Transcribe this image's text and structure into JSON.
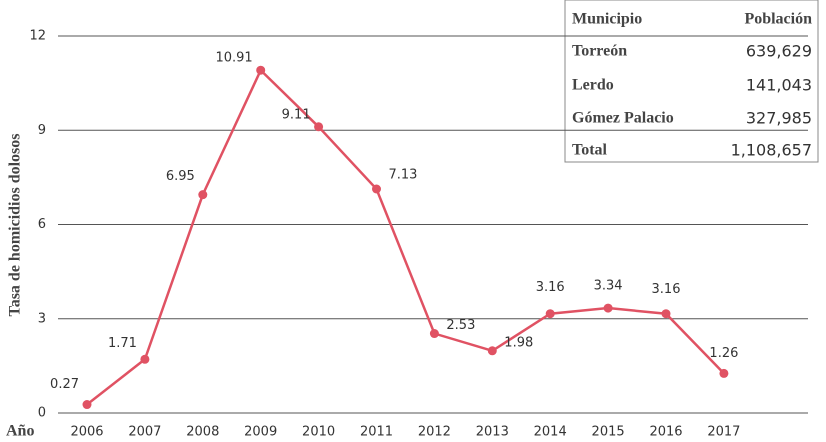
{
  "chart_data": {
    "type": "line",
    "x_label": "Año",
    "y_label": "Tasa de homicidios dolosos",
    "categories": [
      "2006",
      "2007",
      "2008",
      "2009",
      "2010",
      "2011",
      "2012",
      "2013",
      "2014",
      "2015",
      "2016",
      "2017"
    ],
    "values": [
      0.27,
      1.71,
      6.95,
      10.91,
      9.11,
      7.13,
      2.53,
      1.98,
      3.16,
      3.34,
      3.16,
      1.26
    ],
    "color": "#e05263",
    "ylim": [
      0,
      12
    ],
    "yticks": [
      0,
      3,
      6,
      9,
      12
    ],
    "grid": true
  },
  "table": {
    "header": [
      "Municipio",
      "Población"
    ],
    "rows": [
      [
        "Torreón",
        "639,629"
      ],
      [
        "Lerdo",
        "141,043"
      ],
      [
        "Gómez Palacio",
        "327,985"
      ],
      [
        "Total",
        "1,108,657"
      ]
    ]
  }
}
